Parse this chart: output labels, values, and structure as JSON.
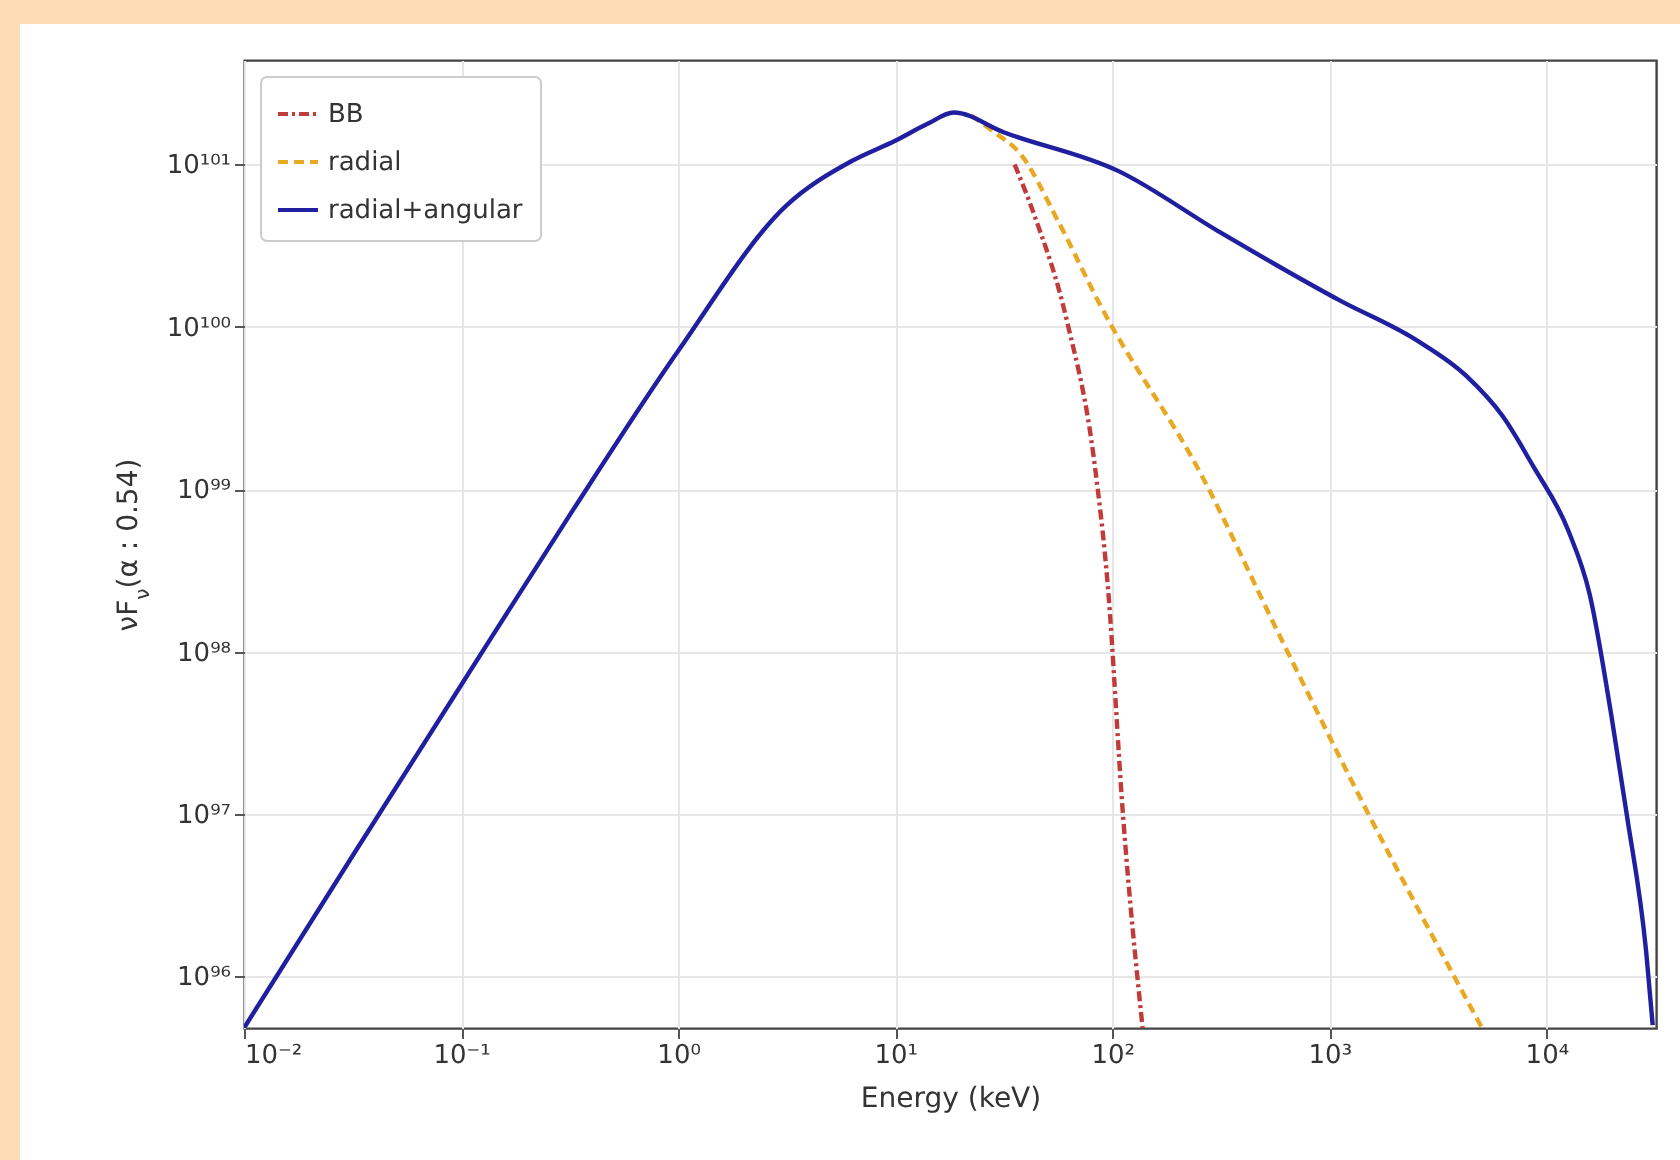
{
  "chart_data": {
    "type": "line",
    "xlabel": "Energy (keV)",
    "ylabel": "νF$_{ν}$(α : 0.54)",
    "log": "xy",
    "grid": true,
    "legend": "top left",
    "xlim": [
      0.01,
      32000
    ],
    "ylim": [
      4.8e+95,
      4.4e+101
    ],
    "xticks": [
      {
        "value": 0.01,
        "label": "10⁻²"
      },
      {
        "value": 0.1,
        "label": "10⁻¹"
      },
      {
        "value": 1,
        "label": "10⁰"
      },
      {
        "value": 10,
        "label": "10¹"
      },
      {
        "value": 100,
        "label": "10²"
      },
      {
        "value": 1000,
        "label": "10³"
      },
      {
        "value": 10000,
        "label": "10⁴"
      }
    ],
    "yticks": [
      {
        "value": 1e+96,
        "label": "10⁹⁶"
      },
      {
        "value": 1e+97,
        "label": "10⁹⁷"
      },
      {
        "value": 1e+98,
        "label": "10⁹⁸"
      },
      {
        "value": 1e+99,
        "label": "10⁹⁹"
      },
      {
        "value": 1e+100,
        "label": "10¹⁰⁰"
      },
      {
        "value": 1e+101,
        "label": "10¹⁰¹"
      }
    ],
    "series": [
      {
        "name": "BB",
        "color": "#c23b3b",
        "line_style": "dashdot",
        "x": [
          35.5,
          43.7,
          61.7,
          83.2,
          95.5,
          112,
          138
        ],
        "values": [
          1e+101,
          4.9e+100,
          1.1e+100,
          1.38e+99,
          2.5e+98,
          1e+97,
          4.8e+95
        ]
      },
      {
        "name": "radial",
        "color": "#e8a822",
        "line_style": "dashed",
        "x": [
          22.4,
          28.2,
          38,
          56.2,
          89.1,
          257,
          589,
          1514,
          5012
        ],
        "values": [
          2e+101,
          1.6e+101,
          1.15e+101,
          4.5e+100,
          1.32e+100,
          1.23e+99,
          1.26e+98,
          1e+97,
          4.9e+95
        ]
      },
      {
        "name": "radial+angular",
        "color": "#1f1fa0",
        "line_style": "solid",
        "x": [
          0.01,
          0.0316,
          0.1,
          0.316,
          1,
          3.16,
          6.31,
          10,
          14.1,
          18.6,
          31.6,
          107,
          316,
          1122,
          2512,
          4266,
          6310,
          8710,
          12590,
          15850,
          19950,
          23440,
          28840,
          30900
        ],
        "values": [
          4.8e+95,
          5.5e+96,
          6.2e+97,
          6.9e+98,
          7.1e+99,
          5.6e+100,
          1.05e+101,
          1.4e+101,
          1.78e+101,
          2.09e+101,
          1.58e+101,
          9.1e+100,
          3.8e+100,
          1.45e+100,
          8.3e+99,
          5e+99,
          2.8e+99,
          1.38e+99,
          5.6e+98,
          2.24e+98,
          4e+97,
          1e+97,
          1.41e+96,
          5e+95
        ]
      }
    ]
  }
}
